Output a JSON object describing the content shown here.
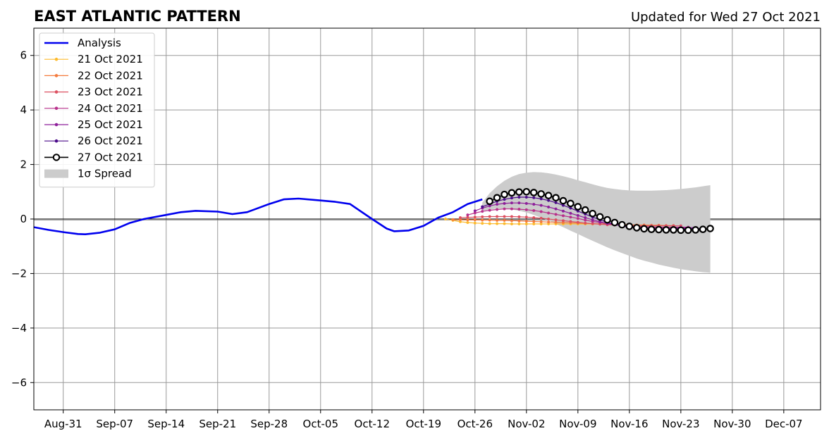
{
  "title": "EAST ATLANTIC PATTERN",
  "subtitle": "Updated for Wed 27 Oct 2021",
  "chart_data": {
    "type": "line",
    "title": "EAST ATLANTIC PATTERN",
    "subtitle": "Updated for Wed 27 Oct 2021",
    "xlabel": "",
    "ylabel": "",
    "x_axis": "date",
    "xlim": [
      "2021-08-27",
      "2021-12-12"
    ],
    "ylim": [
      -7,
      7
    ],
    "yticks": [
      -6,
      -4,
      -2,
      0,
      2,
      4,
      6
    ],
    "ytick_labels": [
      "−6",
      "−4",
      "−2",
      "0",
      "2",
      "4",
      "6"
    ],
    "xticks": [
      "2021-08-31",
      "2021-09-07",
      "2021-09-14",
      "2021-09-21",
      "2021-09-28",
      "2021-10-05",
      "2021-10-12",
      "2021-10-19",
      "2021-10-26",
      "2021-11-02",
      "2021-11-09",
      "2021-11-16",
      "2021-11-23",
      "2021-11-30",
      "2021-12-07"
    ],
    "xtick_labels": [
      "Aug-31",
      "Sep-07",
      "Sep-14",
      "Sep-21",
      "Sep-28",
      "Oct-05",
      "Oct-12",
      "Oct-19",
      "Oct-26",
      "Nov-02",
      "Nov-09",
      "Nov-16",
      "Nov-23",
      "Nov-30",
      "Dec-07"
    ],
    "grid": true,
    "zero_line": true,
    "legend_position": "top-left",
    "series": [
      {
        "name": "Analysis",
        "color": "#0000ee",
        "x": [
          "2021-08-27",
          "2021-08-29",
          "2021-08-31",
          "2021-09-02",
          "2021-09-03",
          "2021-09-05",
          "2021-09-07",
          "2021-09-09",
          "2021-09-11",
          "2021-09-14",
          "2021-09-16",
          "2021-09-18",
          "2021-09-21",
          "2021-09-23",
          "2021-09-25",
          "2021-09-28",
          "2021-09-30",
          "2021-10-02",
          "2021-10-05",
          "2021-10-07",
          "2021-10-09",
          "2021-10-12",
          "2021-10-14",
          "2021-10-15",
          "2021-10-17",
          "2021-10-19",
          "2021-10-21",
          "2021-10-23",
          "2021-10-25",
          "2021-10-27"
        ],
        "y": [
          -0.3,
          -0.4,
          -0.48,
          -0.55,
          -0.56,
          -0.5,
          -0.38,
          -0.15,
          0.0,
          0.15,
          0.25,
          0.3,
          0.27,
          0.18,
          0.25,
          0.55,
          0.72,
          0.75,
          0.68,
          0.63,
          0.55,
          0.0,
          -0.35,
          -0.45,
          -0.42,
          -0.25,
          0.05,
          0.25,
          0.55,
          0.72
        ]
      },
      {
        "name": "21 Oct 2021",
        "color": "#fdbb2f",
        "x": [
          "2021-10-22",
          "2021-10-23",
          "2021-10-24",
          "2021-10-25",
          "2021-10-26",
          "2021-10-27",
          "2021-10-28",
          "2021-10-29",
          "2021-10-30",
          "2021-10-31",
          "2021-11-01",
          "2021-11-02",
          "2021-11-03",
          "2021-11-04",
          "2021-11-05",
          "2021-11-06",
          "2021-11-07",
          "2021-11-08",
          "2021-11-09",
          "2021-11-10",
          "2021-11-11",
          "2021-11-12",
          "2021-11-13",
          "2021-11-14",
          "2021-11-15"
        ],
        "y": [
          0.0,
          -0.05,
          -0.1,
          -0.13,
          -0.15,
          -0.16,
          -0.17,
          -0.17,
          -0.17,
          -0.18,
          -0.18,
          -0.18,
          -0.18,
          -0.18,
          -0.18,
          -0.18,
          -0.18,
          -0.18,
          -0.18,
          -0.18,
          -0.18,
          -0.18,
          -0.18,
          -0.17,
          -0.17
        ]
      },
      {
        "name": "22 Oct 2021",
        "color": "#f47a3c",
        "x": [
          "2021-10-23",
          "2021-10-24",
          "2021-10-25",
          "2021-10-26",
          "2021-10-27",
          "2021-10-28",
          "2021-10-29",
          "2021-10-30",
          "2021-10-31",
          "2021-11-01",
          "2021-11-02",
          "2021-11-03",
          "2021-11-04",
          "2021-11-05",
          "2021-11-06",
          "2021-11-07",
          "2021-11-08",
          "2021-11-09",
          "2021-11-10",
          "2021-11-11",
          "2021-11-12",
          "2021-11-13",
          "2021-11-14",
          "2021-11-15",
          "2021-11-16",
          "2021-11-17",
          "2021-11-18",
          "2021-11-19",
          "2021-11-20",
          "2021-11-21",
          "2021-11-22"
        ],
        "y": [
          -0.02,
          -0.02,
          -0.03,
          -0.03,
          -0.04,
          -0.04,
          -0.05,
          -0.05,
          -0.06,
          -0.07,
          -0.08,
          -0.09,
          -0.1,
          -0.11,
          -0.12,
          -0.13,
          -0.14,
          -0.15,
          -0.16,
          -0.17,
          -0.18,
          -0.19,
          -0.2,
          -0.2,
          -0.21,
          -0.22,
          -0.22,
          -0.23,
          -0.23,
          -0.24,
          -0.24
        ]
      },
      {
        "name": "23 Oct 2021",
        "color": "#dc5060",
        "x": [
          "2021-10-24",
          "2021-10-25",
          "2021-10-26",
          "2021-10-27",
          "2021-10-28",
          "2021-10-29",
          "2021-10-30",
          "2021-10-31",
          "2021-11-01",
          "2021-11-02",
          "2021-11-03",
          "2021-11-04",
          "2021-11-05",
          "2021-11-06",
          "2021-11-07",
          "2021-11-08",
          "2021-11-09",
          "2021-11-10",
          "2021-11-11",
          "2021-11-12",
          "2021-11-13",
          "2021-11-14",
          "2021-11-15",
          "2021-11-16",
          "2021-11-17",
          "2021-11-18",
          "2021-11-19",
          "2021-11-20",
          "2021-11-21",
          "2021-11-22",
          "2021-11-23"
        ],
        "y": [
          0.05,
          0.06,
          0.07,
          0.08,
          0.09,
          0.09,
          0.09,
          0.09,
          0.08,
          0.07,
          0.05,
          0.03,
          0.0,
          -0.03,
          -0.06,
          -0.09,
          -0.12,
          -0.15,
          -0.17,
          -0.19,
          -0.21,
          -0.22,
          -0.23,
          -0.24,
          -0.25,
          -0.25,
          -0.25,
          -0.25,
          -0.25,
          -0.25,
          -0.25
        ]
      },
      {
        "name": "24 Oct 2021",
        "color": "#b8308b",
        "x": [
          "2021-10-25",
          "2021-10-26",
          "2021-10-27",
          "2021-10-28",
          "2021-10-29",
          "2021-10-30",
          "2021-10-31",
          "2021-11-01",
          "2021-11-02",
          "2021-11-03",
          "2021-11-04",
          "2021-11-05",
          "2021-11-06",
          "2021-11-07",
          "2021-11-08",
          "2021-11-09",
          "2021-11-10",
          "2021-11-11",
          "2021-11-12",
          "2021-11-13",
          "2021-11-14",
          "2021-11-15",
          "2021-11-16",
          "2021-11-17",
          "2021-11-18",
          "2021-11-19",
          "2021-11-20",
          "2021-11-21",
          "2021-11-22",
          "2021-11-23",
          "2021-11-24"
        ],
        "y": [
          0.15,
          0.22,
          0.28,
          0.32,
          0.35,
          0.37,
          0.37,
          0.36,
          0.34,
          0.31,
          0.27,
          0.22,
          0.17,
          0.12,
          0.07,
          0.02,
          -0.04,
          -0.09,
          -0.13,
          -0.17,
          -0.2,
          -0.23,
          -0.25,
          -0.27,
          -0.28,
          -0.29,
          -0.3,
          -0.3,
          -0.3,
          -0.3,
          -0.3
        ]
      },
      {
        "name": "25 Oct 2021",
        "color": "#8e1f9a",
        "x": [
          "2021-10-26",
          "2021-10-27",
          "2021-10-28",
          "2021-10-29",
          "2021-10-30",
          "2021-10-31",
          "2021-11-01",
          "2021-11-02",
          "2021-11-03",
          "2021-11-04",
          "2021-11-05",
          "2021-11-06",
          "2021-11-07",
          "2021-11-08",
          "2021-11-09",
          "2021-11-10",
          "2021-11-11",
          "2021-11-12",
          "2021-11-13",
          "2021-11-14",
          "2021-11-15",
          "2021-11-16",
          "2021-11-17",
          "2021-11-18",
          "2021-11-19",
          "2021-11-20",
          "2021-11-21",
          "2021-11-22",
          "2021-11-23",
          "2021-11-24",
          "2021-11-25"
        ],
        "y": [
          0.3,
          0.4,
          0.48,
          0.54,
          0.57,
          0.59,
          0.59,
          0.57,
          0.54,
          0.5,
          0.44,
          0.37,
          0.29,
          0.21,
          0.13,
          0.05,
          -0.03,
          -0.1,
          -0.16,
          -0.21,
          -0.25,
          -0.28,
          -0.3,
          -0.32,
          -0.33,
          -0.33,
          -0.33,
          -0.33,
          -0.32,
          -0.32,
          -0.31
        ]
      },
      {
        "name": "26 Oct 2021",
        "color": "#4b0b8a",
        "x": [
          "2021-10-27",
          "2021-10-28",
          "2021-10-29",
          "2021-10-30",
          "2021-10-31",
          "2021-11-01",
          "2021-11-02",
          "2021-11-03",
          "2021-11-04",
          "2021-11-05",
          "2021-11-06",
          "2021-11-07",
          "2021-11-08",
          "2021-11-09",
          "2021-11-10",
          "2021-11-11",
          "2021-11-12",
          "2021-11-13",
          "2021-11-14",
          "2021-11-15",
          "2021-11-16",
          "2021-11-17",
          "2021-11-18",
          "2021-11-19",
          "2021-11-20",
          "2021-11-21",
          "2021-11-22",
          "2021-11-23",
          "2021-11-24",
          "2021-11-25",
          "2021-11-26"
        ],
        "y": [
          0.45,
          0.55,
          0.65,
          0.72,
          0.77,
          0.8,
          0.8,
          0.78,
          0.74,
          0.68,
          0.6,
          0.5,
          0.4,
          0.29,
          0.18,
          0.07,
          -0.03,
          -0.12,
          -0.2,
          -0.26,
          -0.3,
          -0.33,
          -0.35,
          -0.36,
          -0.37,
          -0.37,
          -0.36,
          -0.36,
          -0.35,
          -0.35,
          -0.34
        ]
      },
      {
        "name": "27 Oct 2021",
        "color": "#000000",
        "marker_fill": "#ffffff",
        "x": [
          "2021-10-28",
          "2021-10-29",
          "2021-10-30",
          "2021-10-31",
          "2021-11-01",
          "2021-11-02",
          "2021-11-03",
          "2021-11-04",
          "2021-11-05",
          "2021-11-06",
          "2021-11-07",
          "2021-11-08",
          "2021-11-09",
          "2021-11-10",
          "2021-11-11",
          "2021-11-12",
          "2021-11-13",
          "2021-11-14",
          "2021-11-15",
          "2021-11-16",
          "2021-11-17",
          "2021-11-18",
          "2021-11-19",
          "2021-11-20",
          "2021-11-21",
          "2021-11-22",
          "2021-11-23",
          "2021-11-24",
          "2021-11-25",
          "2021-11-26",
          "2021-11-27"
        ],
        "y": [
          0.65,
          0.78,
          0.9,
          0.96,
          0.99,
          1.0,
          0.97,
          0.92,
          0.86,
          0.78,
          0.67,
          0.57,
          0.45,
          0.33,
          0.2,
          0.08,
          -0.03,
          -0.13,
          -0.21,
          -0.27,
          -0.32,
          -0.36,
          -0.38,
          -0.39,
          -0.4,
          -0.4,
          -0.41,
          -0.41,
          -0.4,
          -0.38,
          -0.35
        ]
      }
    ],
    "spread": {
      "name": "1σ Spread",
      "color": "#cccccc",
      "x": [
        "2021-10-27",
        "2021-10-28",
        "2021-10-29",
        "2021-10-30",
        "2021-10-31",
        "2021-11-01",
        "2021-11-02",
        "2021-11-03",
        "2021-11-04",
        "2021-11-05",
        "2021-11-06",
        "2021-11-07",
        "2021-11-08",
        "2021-11-09",
        "2021-11-10",
        "2021-11-11",
        "2021-11-12",
        "2021-11-13",
        "2021-11-14",
        "2021-11-15",
        "2021-11-16",
        "2021-11-17",
        "2021-11-18",
        "2021-11-19",
        "2021-11-20",
        "2021-11-21",
        "2021-11-22",
        "2021-11-23",
        "2021-11-24",
        "2021-11-25",
        "2021-11-26",
        "2021-11-27"
      ],
      "upper": [
        0.6,
        0.95,
        1.2,
        1.4,
        1.55,
        1.65,
        1.7,
        1.72,
        1.71,
        1.68,
        1.63,
        1.57,
        1.5,
        1.42,
        1.35,
        1.27,
        1.2,
        1.14,
        1.1,
        1.07,
        1.05,
        1.04,
        1.04,
        1.04,
        1.05,
        1.06,
        1.08,
        1.1,
        1.13,
        1.16,
        1.2,
        1.24
      ],
      "lower": [
        0.3,
        0.35,
        0.38,
        0.38,
        0.35,
        0.3,
        0.24,
        0.15,
        0.05,
        -0.05,
        -0.18,
        -0.3,
        -0.43,
        -0.55,
        -0.68,
        -0.8,
        -0.92,
        -1.04,
        -1.15,
        -1.25,
        -1.35,
        -1.45,
        -1.53,
        -1.6,
        -1.67,
        -1.73,
        -1.79,
        -1.84,
        -1.88,
        -1.92,
        -1.95,
        -1.97
      ]
    }
  }
}
